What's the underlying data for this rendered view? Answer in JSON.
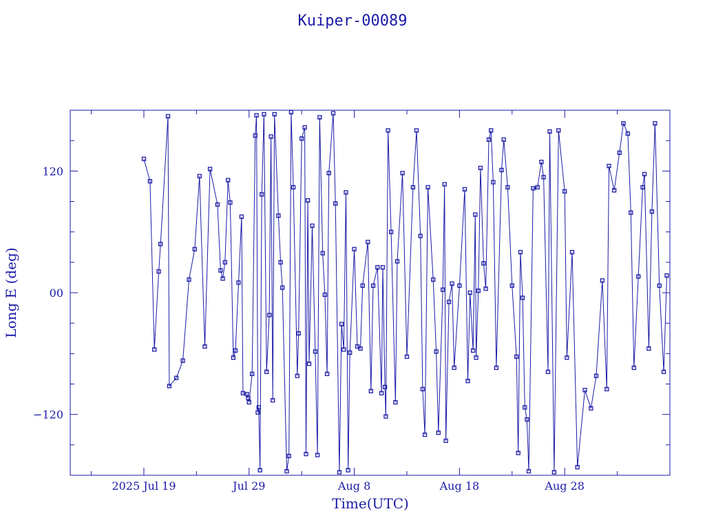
{
  "chart_data": {
    "type": "line",
    "title": "Kuiper-00089",
    "xlabel": "Time(UTC)",
    "ylabel": "Long E (deg)",
    "color": "#1a1aa6",
    "grid": false,
    "legend": "none",
    "xlim": [
      "2025-07-12",
      "2025-09-07"
    ],
    "ylim": [
      -180,
      180
    ],
    "x_ticks": [
      {
        "date": "2025-07-19",
        "label": "2025 Jul 19"
      },
      {
        "date": "2025-07-29",
        "label": "Jul 29"
      },
      {
        "date": "2025-08-08",
        "label": "Aug  8"
      },
      {
        "date": "2025-08-18",
        "label": "Aug 18"
      },
      {
        "date": "2025-08-28",
        "label": "Aug 28"
      }
    ],
    "y_ticks": [
      {
        "value": 120,
        "label": "120"
      },
      {
        "value": 0,
        "label": "00"
      },
      {
        "value": -120,
        "label": "−120"
      }
    ],
    "series": [
      {
        "points": [
          [
            "2025-07-19 00:00",
            132
          ],
          [
            "2025-07-19 14:00",
            110
          ],
          [
            "2025-07-20 00:00",
            -56
          ],
          [
            "2025-07-20 10:00",
            21
          ],
          [
            "2025-07-20 14:00",
            48
          ],
          [
            "2025-07-21 07:00",
            174
          ],
          [
            "2025-07-21 10:00",
            -92
          ],
          [
            "2025-07-22 02:00",
            -84
          ],
          [
            "2025-07-22 17:00",
            -67
          ],
          [
            "2025-07-23 07:00",
            13
          ],
          [
            "2025-07-23 20:00",
            43
          ],
          [
            "2025-07-24 07:00",
            115
          ],
          [
            "2025-07-24 19:00",
            -53
          ],
          [
            "2025-07-25 07:00",
            122
          ],
          [
            "2025-07-26 00:00",
            87
          ],
          [
            "2025-07-26 07:00",
            22
          ],
          [
            "2025-07-26 12:00",
            14
          ],
          [
            "2025-07-26 17:00",
            30
          ],
          [
            "2025-07-27 00:00",
            111
          ],
          [
            "2025-07-27 05:00",
            89
          ],
          [
            "2025-07-27 12:00",
            -64
          ],
          [
            "2025-07-27 17:00",
            -57
          ],
          [
            "2025-07-28 00:00",
            10
          ],
          [
            "2025-07-28 07:00",
            75
          ],
          [
            "2025-07-28 10:00",
            -99
          ],
          [
            "2025-07-28 19:00",
            -100
          ],
          [
            "2025-07-28 22:00",
            -104
          ],
          [
            "2025-07-29 00:00",
            -108
          ],
          [
            "2025-07-29 07:00",
            -80
          ],
          [
            "2025-07-29 14:00",
            155
          ],
          [
            "2025-07-29 17:00",
            175
          ],
          [
            "2025-07-29 20:00",
            -118
          ],
          [
            "2025-07-29 22:00",
            -113
          ],
          [
            "2025-07-30 01:00",
            -175
          ],
          [
            "2025-07-30 05:00",
            97
          ],
          [
            "2025-07-30 10:00",
            176
          ],
          [
            "2025-07-30 16:00",
            -78
          ],
          [
            "2025-07-30 22:00",
            -22
          ],
          [
            "2025-07-31 02:00",
            154
          ],
          [
            "2025-07-31 06:00",
            -106
          ],
          [
            "2025-07-31 10:00",
            176
          ],
          [
            "2025-07-31 19:00",
            76
          ],
          [
            "2025-08-01 00:00",
            30
          ],
          [
            "2025-08-01 04:00",
            5
          ],
          [
            "2025-08-01 14:00",
            -176
          ],
          [
            "2025-08-01 19:00",
            -161
          ],
          [
            "2025-08-02 00:00",
            178
          ],
          [
            "2025-08-02 05:00",
            104
          ],
          [
            "2025-08-02 14:00",
            -82
          ],
          [
            "2025-08-02 17:00",
            -40
          ],
          [
            "2025-08-03 00:00",
            152
          ],
          [
            "2025-08-03 07:00",
            163
          ],
          [
            "2025-08-03 10:00",
            -159
          ],
          [
            "2025-08-03 14:00",
            91
          ],
          [
            "2025-08-03 17:00",
            -70
          ],
          [
            "2025-08-04 00:00",
            66
          ],
          [
            "2025-08-04 07:00",
            -58
          ],
          [
            "2025-08-04 12:00",
            -160
          ],
          [
            "2025-08-04 17:00",
            173
          ],
          [
            "2025-08-05 00:00",
            39
          ],
          [
            "2025-08-05 05:00",
            -2
          ],
          [
            "2025-08-05 10:00",
            -80
          ],
          [
            "2025-08-05 14:00",
            118
          ],
          [
            "2025-08-06 00:00",
            177
          ],
          [
            "2025-08-06 05:00",
            88
          ],
          [
            "2025-08-06 14:00",
            -177
          ],
          [
            "2025-08-06 19:00",
            -31
          ],
          [
            "2025-08-07 00:00",
            -56
          ],
          [
            "2025-08-07 05:00",
            99
          ],
          [
            "2025-08-07 10:00",
            -175
          ],
          [
            "2025-08-07 14:00",
            -59
          ],
          [
            "2025-08-08 00:00",
            43
          ],
          [
            "2025-08-08 07:00",
            -53
          ],
          [
            "2025-08-08 14:00",
            -55
          ],
          [
            "2025-08-08 19:00",
            7
          ],
          [
            "2025-08-09 07:00",
            50
          ],
          [
            "2025-08-09 14:00",
            -97
          ],
          [
            "2025-08-09 19:00",
            7
          ],
          [
            "2025-08-10 05:00",
            25
          ],
          [
            "2025-08-10 14:00",
            -99
          ],
          [
            "2025-08-10 17:00",
            25
          ],
          [
            "2025-08-10 22:00",
            -93
          ],
          [
            "2025-08-11 00:00",
            -122
          ],
          [
            "2025-08-11 05:00",
            160
          ],
          [
            "2025-08-11 12:00",
            60
          ],
          [
            "2025-08-11 22:00",
            -108
          ],
          [
            "2025-08-12 02:00",
            31
          ],
          [
            "2025-08-12 14:00",
            118
          ],
          [
            "2025-08-13 00:00",
            -63
          ],
          [
            "2025-08-13 14:00",
            104
          ],
          [
            "2025-08-13 22:00",
            160
          ],
          [
            "2025-08-14 07:00",
            56
          ],
          [
            "2025-08-14 12:00",
            -95
          ],
          [
            "2025-08-14 17:00",
            -140
          ],
          [
            "2025-08-15 00:00",
            104
          ],
          [
            "2025-08-15 12:00",
            13
          ],
          [
            "2025-08-15 19:00",
            -58
          ],
          [
            "2025-08-16 00:00",
            -138
          ],
          [
            "2025-08-16 10:00",
            3
          ],
          [
            "2025-08-16 14:00",
            107
          ],
          [
            "2025-08-16 17:00",
            -146
          ],
          [
            "2025-08-17 00:00",
            -9
          ],
          [
            "2025-08-17 07:00",
            9
          ],
          [
            "2025-08-17 12:00",
            -74
          ],
          [
            "2025-08-18 00:00",
            7
          ],
          [
            "2025-08-18 12:00",
            102
          ],
          [
            "2025-08-18 19:00",
            -87
          ],
          [
            "2025-08-19 00:00",
            0
          ],
          [
            "2025-08-19 07:00",
            -57
          ],
          [
            "2025-08-19 12:00",
            77
          ],
          [
            "2025-08-19 14:00",
            -64
          ],
          [
            "2025-08-19 19:00",
            2
          ],
          [
            "2025-08-20 00:00",
            123
          ],
          [
            "2025-08-20 07:00",
            29
          ],
          [
            "2025-08-20 12:00",
            4
          ],
          [
            "2025-08-20 19:00",
            151
          ],
          [
            "2025-08-21 00:00",
            160
          ],
          [
            "2025-08-21 05:00",
            109
          ],
          [
            "2025-08-21 12:00",
            -74
          ],
          [
            "2025-08-22 00:00",
            121
          ],
          [
            "2025-08-22 05:00",
            151
          ],
          [
            "2025-08-22 14:00",
            104
          ],
          [
            "2025-08-23 00:00",
            7
          ],
          [
            "2025-08-23 10:00",
            -63
          ],
          [
            "2025-08-23 14:00",
            -158
          ],
          [
            "2025-08-23 19:00",
            40
          ],
          [
            "2025-08-24 00:00",
            -5
          ],
          [
            "2025-08-24 05:00",
            -113
          ],
          [
            "2025-08-24 10:00",
            -125
          ],
          [
            "2025-08-24 14:00",
            -176
          ],
          [
            "2025-08-25 00:00",
            103
          ],
          [
            "2025-08-25 10:00",
            104
          ],
          [
            "2025-08-25 19:00",
            129
          ],
          [
            "2025-08-26 00:00",
            114
          ],
          [
            "2025-08-26 10:00",
            -78
          ],
          [
            "2025-08-26 14:00",
            159
          ],
          [
            "2025-08-27 00:00",
            -177
          ],
          [
            "2025-08-27 10:00",
            160
          ],
          [
            "2025-08-28 00:00",
            100
          ],
          [
            "2025-08-28 05:00",
            -64
          ],
          [
            "2025-08-28 17:00",
            40
          ],
          [
            "2025-08-29 05:00",
            -172
          ],
          [
            "2025-08-29 22:00",
            -96
          ],
          [
            "2025-08-30 12:00",
            -114
          ],
          [
            "2025-08-31 00:00",
            -82
          ],
          [
            "2025-08-31 14:00",
            12
          ],
          [
            "2025-09-01 00:00",
            -95
          ],
          [
            "2025-09-01 05:00",
            125
          ],
          [
            "2025-09-01 17:00",
            101
          ],
          [
            "2025-09-02 05:00",
            138
          ],
          [
            "2025-09-02 14:00",
            167
          ],
          [
            "2025-09-03 00:00",
            157
          ],
          [
            "2025-09-03 07:00",
            79
          ],
          [
            "2025-09-03 14:00",
            -74
          ],
          [
            "2025-09-04 00:00",
            16
          ],
          [
            "2025-09-04 10:00",
            104
          ],
          [
            "2025-09-04 14:00",
            117
          ],
          [
            "2025-09-05 00:00",
            -55
          ],
          [
            "2025-09-05 07:00",
            80
          ],
          [
            "2025-09-05 14:00",
            167
          ],
          [
            "2025-09-06 00:00",
            7
          ],
          [
            "2025-09-06 10:00",
            -78
          ],
          [
            "2025-09-06 17:00",
            17
          ]
        ]
      }
    ]
  }
}
